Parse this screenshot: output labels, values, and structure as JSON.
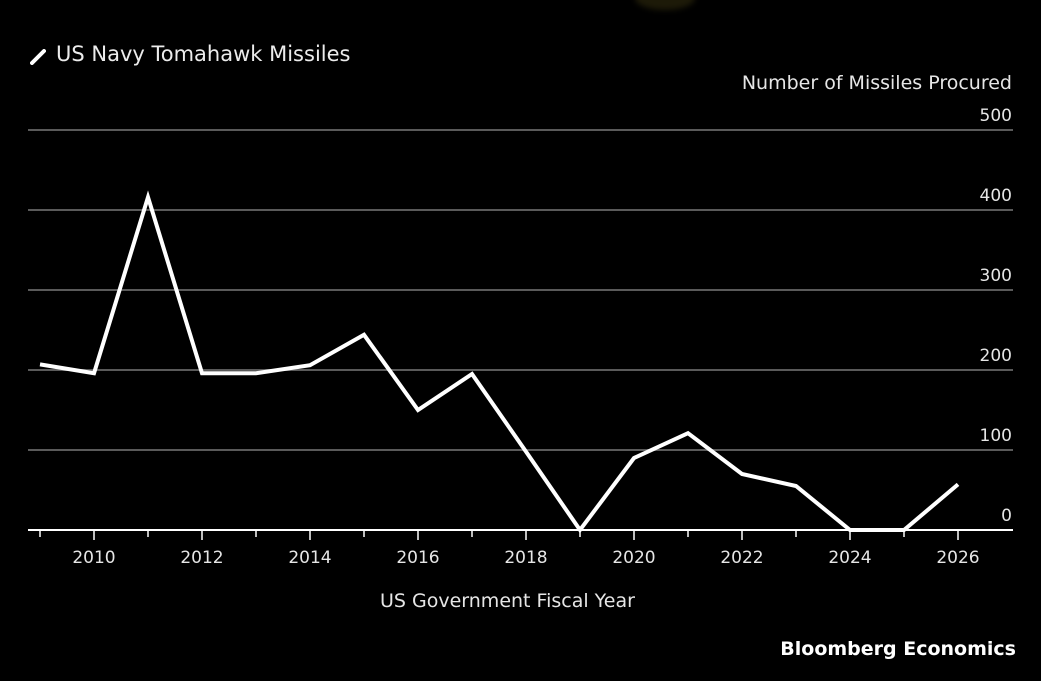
{
  "chart_data": {
    "type": "line",
    "title": "US Navy Tomahawk Missiles",
    "xlabel": "US Government Fiscal Year",
    "ylabel": "Number of Missiles Procured",
    "source": "Bloomberg Economics",
    "x": [
      2009,
      2010,
      2011,
      2012,
      2013,
      2014,
      2015,
      2016,
      2017,
      2018,
      2019,
      2020,
      2021,
      2022,
      2023,
      2024,
      2025,
      2026
    ],
    "series": [
      {
        "name": "US Navy Tomahawk Missiles",
        "values": [
          207,
          196,
          416,
          196,
          196,
          206,
          244,
          150,
          195,
          98,
          0,
          90,
          121,
          70,
          55,
          0,
          0,
          57
        ]
      }
    ],
    "xlim": [
      2009,
      2026
    ],
    "ylim": [
      0,
      500
    ],
    "x_ticks": [
      "2010",
      "2012",
      "2014",
      "2016",
      "2018",
      "2020",
      "2022",
      "2024",
      "2026"
    ],
    "y_ticks": [
      "0",
      "100",
      "200",
      "300",
      "400",
      "500"
    ],
    "grid": true,
    "legend": "none",
    "colors": {
      "background": "#000000",
      "line": "#ffffff",
      "grid": "#5a5a5a",
      "axis": "#ffffff"
    }
  }
}
